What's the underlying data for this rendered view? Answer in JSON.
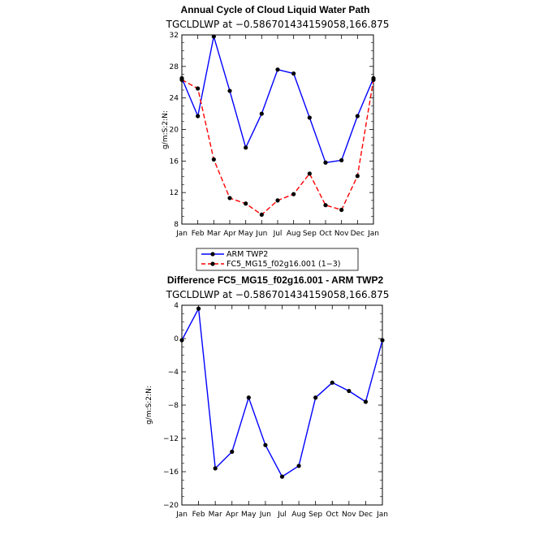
{
  "chart_data": [
    {
      "type": "line",
      "title": "Annual Cycle of Cloud Liquid Water Path",
      "subtitle": "TGCLDLWP  at  −0.586701434159058,166.875",
      "xlabel": "",
      "ylabel": "g/m:S:2:N:",
      "categories": [
        "Jan",
        "Feb",
        "Mar",
        "Apr",
        "May",
        "Jun",
        "Jul",
        "Aug",
        "Sep",
        "Oct",
        "Nov",
        "Dec",
        "Jan"
      ],
      "ylim": [
        8,
        32
      ],
      "yticks": [
        "8",
        "12",
        "16",
        "20",
        "24",
        "28",
        "32"
      ],
      "series": [
        {
          "name": "ARM TWP2",
          "color": "#0000ff",
          "dash": "solid",
          "values": [
            26.5,
            21.7,
            31.8,
            24.9,
            17.7,
            22.0,
            27.6,
            27.1,
            21.5,
            15.8,
            16.1,
            21.7,
            26.5
          ]
        },
        {
          "name": "FC5_MG15_f02g16.001 (1−3)",
          "color": "#ff0000",
          "dash": "dashed",
          "values": [
            26.3,
            25.2,
            16.2,
            11.3,
            10.6,
            9.2,
            11.0,
            11.8,
            14.4,
            10.4,
            9.8,
            14.1,
            26.3
          ]
        }
      ],
      "legend_position": "below"
    },
    {
      "type": "line",
      "title": "Difference FC5_MG15_f02g16.001 - ARM TWP2",
      "subtitle": "TGCLDLWP  at  −0.586701434159058,166.875",
      "xlabel": "",
      "ylabel": "g/m:S:2:N:",
      "categories": [
        "Jan",
        "Feb",
        "Mar",
        "Apr",
        "May",
        "Jun",
        "Jul",
        "Aug",
        "Sep",
        "Oct",
        "Nov",
        "Dec",
        "Jan"
      ],
      "ylim": [
        -20,
        4
      ],
      "yticks": [
        "−20",
        "−16",
        "−12",
        "−8",
        "−4",
        "0",
        "4"
      ],
      "series": [
        {
          "color": "#0000ff",
          "dash": "solid",
          "values": [
            -0.2,
            3.6,
            -15.6,
            -13.6,
            -7.1,
            -12.8,
            -16.6,
            -15.3,
            -7.1,
            -5.3,
            -6.3,
            -7.6,
            -0.2
          ]
        }
      ]
    }
  ]
}
